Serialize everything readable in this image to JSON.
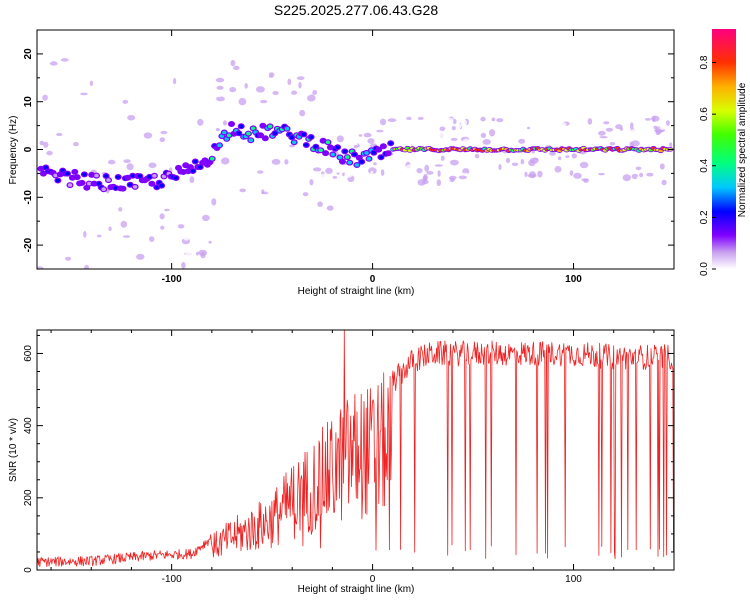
{
  "title": "S225.2025.277.06.43.G28",
  "chart_data": [
    {
      "type": "heatmap",
      "name": "spectrogram",
      "xlabel": "Height of straight line (km)",
      "ylabel": "Frequency (Hz)",
      "xlim": [
        -167,
        150
      ],
      "ylim": [
        -25,
        25
      ],
      "xticks": [
        -100,
        0,
        100
      ],
      "yticks": [
        -20,
        -10,
        0,
        10,
        20
      ],
      "colorbar": {
        "label": "Normalized spectral amplitude",
        "range": [
          0,
          0.93
        ],
        "ticks": [
          0.0,
          0.2,
          0.4,
          0.6,
          0.8
        ],
        "tick_labels": [
          "0.0",
          "0.2",
          "0.4",
          "0.6",
          "0.8"
        ]
      },
      "ridge": {
        "description": "dominant frequency track",
        "x": [
          -167,
          -150,
          -135,
          -120,
          -105,
          -95,
          -85,
          -78,
          -72,
          -68,
          -60,
          -50,
          -40,
          -32,
          -26,
          -20,
          -14,
          -8,
          -2,
          4,
          10,
          20,
          40,
          60,
          80,
          100,
          120,
          150
        ],
        "y": [
          -5,
          -6,
          -7,
          -7,
          -6.5,
          -5,
          -3,
          0,
          4,
          5,
          3,
          4,
          3,
          2,
          1,
          -0.5,
          -1.5,
          -2,
          -1.5,
          -1,
          0,
          0,
          0,
          0,
          0,
          0,
          0,
          0
        ]
      }
    },
    {
      "type": "line",
      "name": "snr",
      "xlabel": "Height of straight line (km)",
      "ylabel": "SNR (10 * v/v)",
      "xlim": [
        -167,
        150
      ],
      "ylim": [
        0,
        665
      ],
      "xticks": [
        -100,
        0,
        100
      ],
      "yticks": [
        0,
        200,
        400,
        600
      ],
      "color": "#ee2222",
      "envelope": {
        "x": [
          -167,
          -140,
          -110,
          -90,
          -80,
          -70,
          -60,
          -50,
          -40,
          -30,
          -20,
          -10,
          0,
          10,
          20,
          30,
          40,
          60,
          80,
          100,
          120,
          150
        ],
        "y": [
          22,
          25,
          40,
          45,
          90,
          130,
          160,
          200,
          270,
          330,
          390,
          460,
          470,
          520,
          580,
          600,
          600,
          600,
          600,
          600,
          590,
          590
        ]
      },
      "notable_peak": {
        "x": -14,
        "y": 665
      }
    }
  ]
}
